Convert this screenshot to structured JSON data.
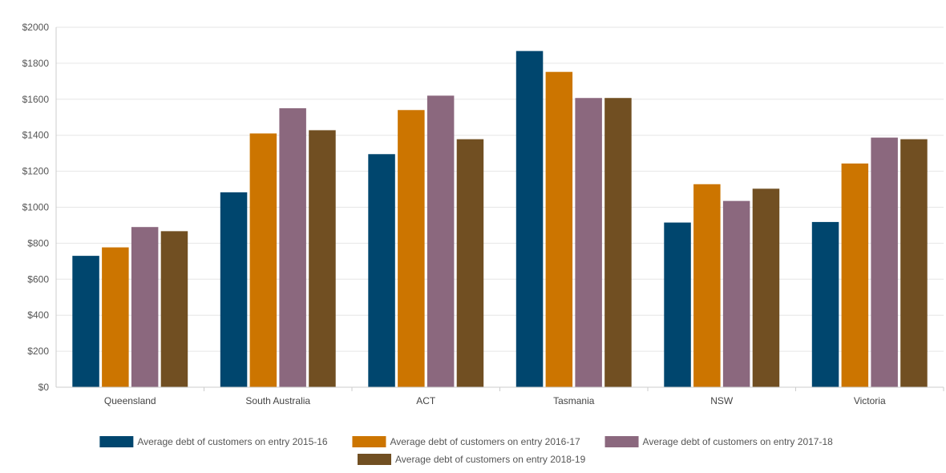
{
  "chart_data": {
    "type": "bar",
    "categories": [
      "Queensland",
      "South Australia",
      "ACT",
      "Tasmania",
      "NSW",
      "Victoria"
    ],
    "series": [
      {
        "name": "Average debt of customers on entry 2015-16",
        "color": "#00466e",
        "values": [
          730,
          1083,
          1295,
          1868,
          915,
          918
        ]
      },
      {
        "name": "Average debt of customers on entry 2016-17",
        "color": "#cc7500",
        "values": [
          777,
          1410,
          1540,
          1752,
          1128,
          1243
        ]
      },
      {
        "name": "Average debt of customers on entry 2017-18",
        "color": "#8b687e",
        "values": [
          890,
          1550,
          1620,
          1607,
          1035,
          1387
        ]
      },
      {
        "name": "Average debt of customers on entry 2018-19",
        "color": "#714f22",
        "values": [
          867,
          1428,
          1378,
          1607,
          1103,
          1378
        ]
      }
    ],
    "ylim": [
      0,
      2000
    ],
    "yticks": [
      0,
      200,
      400,
      600,
      800,
      1000,
      1200,
      1400,
      1600,
      1800,
      2000
    ],
    "ytick_labels": [
      "$0",
      "$200",
      "$400",
      "$600",
      "$800",
      "$1000",
      "$1200",
      "$1400",
      "$1600",
      "$1800",
      "$2000"
    ],
    "title": "",
    "xlabel": "",
    "ylabel": "",
    "grid": true,
    "legend_position": "bottom"
  }
}
